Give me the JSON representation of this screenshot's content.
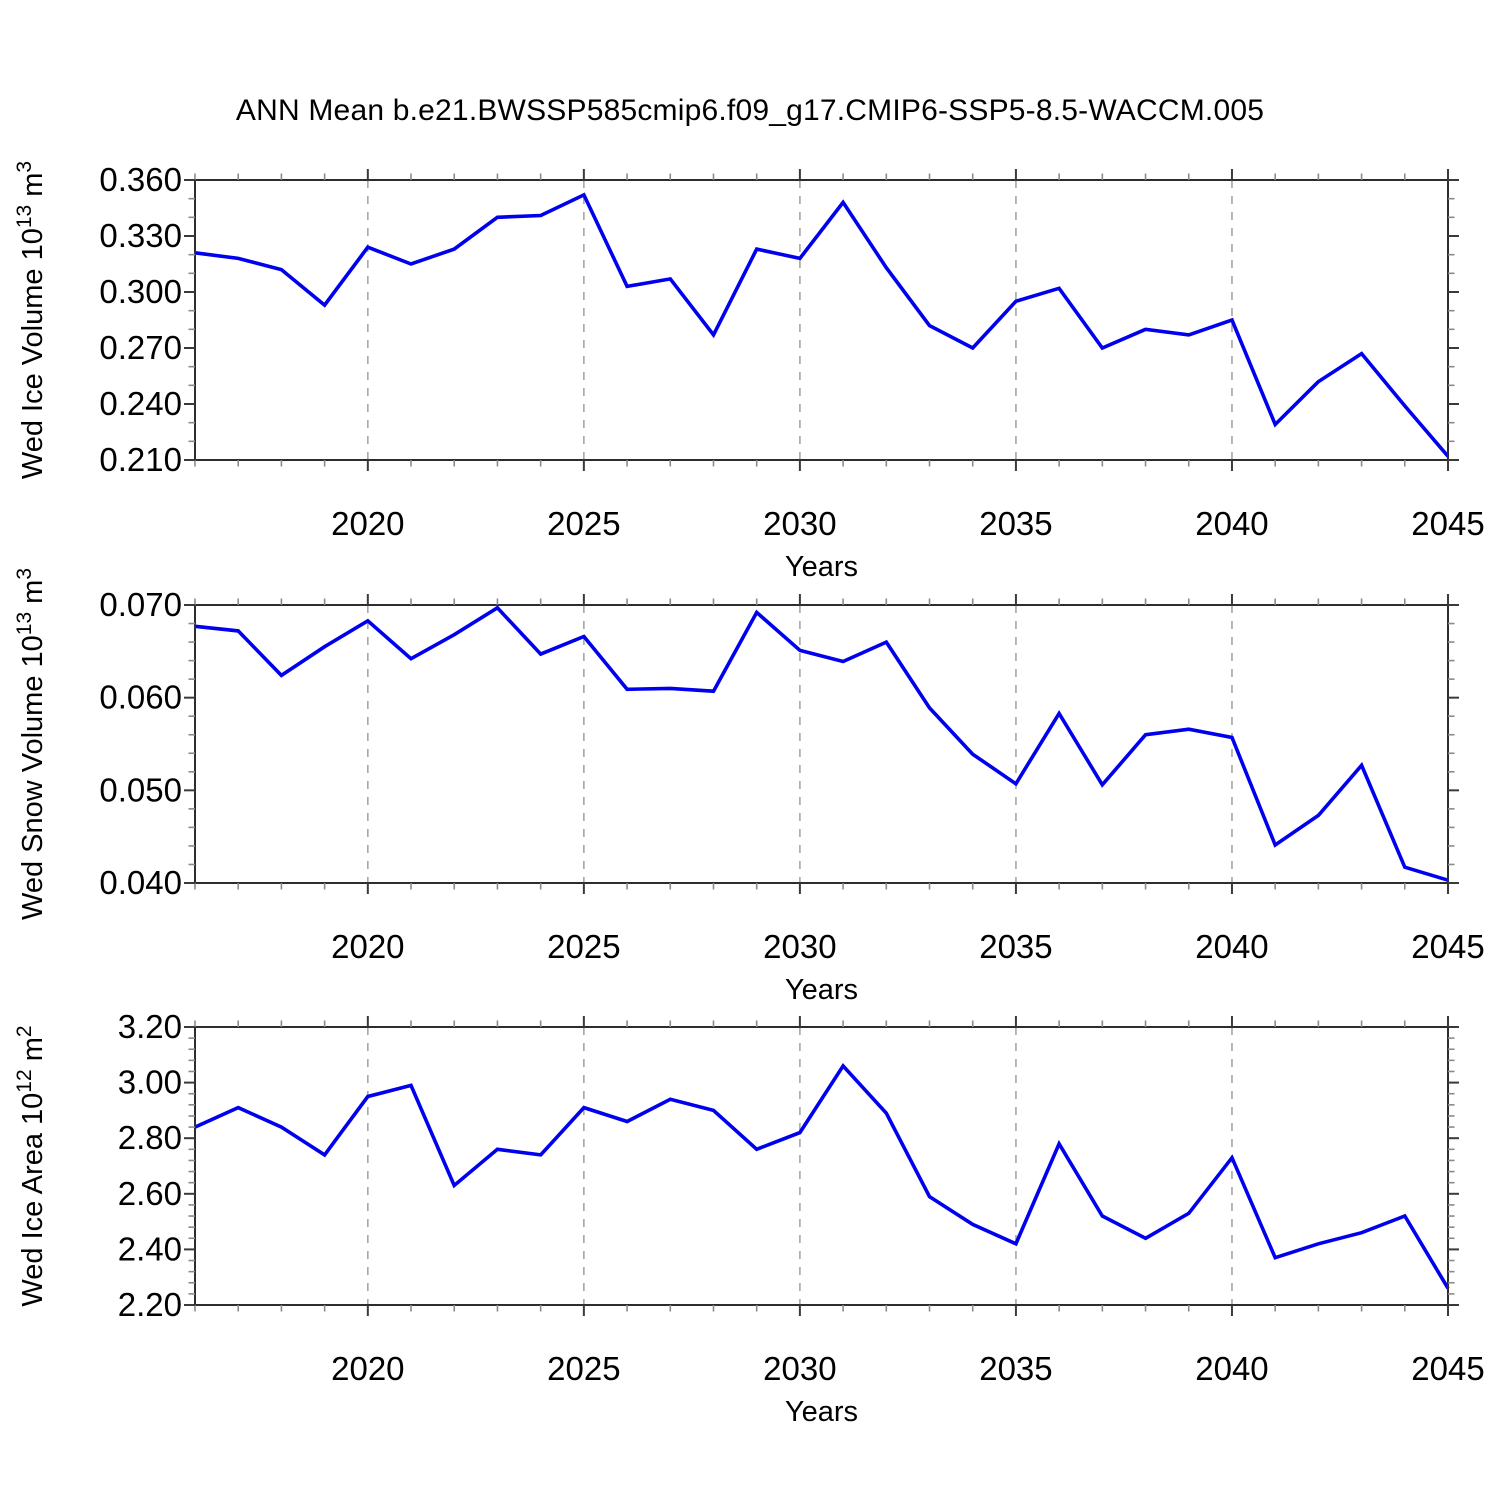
{
  "title": "ANN Mean b.e21.BWSSP585cmip6.f09_g17.CMIP6-SSP5-8.5-WACCM.005",
  "xlabel": "Years",
  "line_color": "#0000ee",
  "years": [
    2016,
    2017,
    2018,
    2019,
    2020,
    2021,
    2022,
    2023,
    2024,
    2025,
    2026,
    2027,
    2028,
    2029,
    2030,
    2031,
    2032,
    2033,
    2034,
    2035,
    2036,
    2037,
    2038,
    2039,
    2040,
    2041,
    2042,
    2043,
    2044,
    2045
  ],
  "x_major_years": [
    2020,
    2025,
    2030,
    2035,
    2040,
    2045
  ],
  "x_tick_labels": [
    "2020",
    "2025",
    "2030",
    "2035",
    "2040",
    "2045"
  ],
  "x_gridline_years": [
    2020,
    2025,
    2030,
    2035,
    2040
  ],
  "chart_data": [
    {
      "id": "wed-ice-volume",
      "type": "line",
      "ylabel_plain": "Wed Ice Volume 10^13 m^3",
      "ylabel_segments": [
        {
          "t": "Wed Ice Volume 10"
        },
        {
          "t": "13",
          "sup": true
        },
        {
          "t": " m"
        },
        {
          "t": "3",
          "sup": true
        }
      ],
      "xlabel": "Years",
      "ylim": [
        0.21,
        0.36
      ],
      "ytick_values": [
        0.36,
        0.33,
        0.3,
        0.27,
        0.24,
        0.21
      ],
      "ytick_labels": [
        "0.360",
        "0.330",
        "0.300",
        "0.270",
        "0.240",
        "0.210"
      ],
      "ytick_minor_step": 0.01,
      "values": [
        0.321,
        0.318,
        0.312,
        0.293,
        0.324,
        0.315,
        0.323,
        0.34,
        0.341,
        0.352,
        0.303,
        0.307,
        0.277,
        0.323,
        0.318,
        0.348,
        0.313,
        0.282,
        0.27,
        0.295,
        0.302,
        0.27,
        0.28,
        0.277,
        0.285,
        0.229,
        0.252,
        0.267,
        0.239,
        0.212
      ]
    },
    {
      "id": "wed-snow-volume",
      "type": "line",
      "ylabel_plain": "Wed Snow Volume 10^13 m^3",
      "ylabel_segments": [
        {
          "t": "Wed Snow Volume 10"
        },
        {
          "t": "13",
          "sup": true
        },
        {
          "t": " m"
        },
        {
          "t": "3",
          "sup": true
        }
      ],
      "xlabel": "Years",
      "ylim": [
        0.04,
        0.07
      ],
      "ytick_values": [
        0.07,
        0.06,
        0.05,
        0.04
      ],
      "ytick_labels": [
        "0.070",
        "0.060",
        "0.050",
        "0.040"
      ],
      "ytick_minor_step": 0.002,
      "values": [
        0.0677,
        0.0672,
        0.0624,
        0.0655,
        0.0683,
        0.0642,
        0.0668,
        0.0697,
        0.0647,
        0.0666,
        0.0609,
        0.061,
        0.0607,
        0.0692,
        0.0651,
        0.0639,
        0.066,
        0.0589,
        0.0539,
        0.0507,
        0.0583,
        0.0506,
        0.056,
        0.0566,
        0.0557,
        0.0441,
        0.0473,
        0.0527,
        0.0417,
        0.0403
      ]
    },
    {
      "id": "wed-ice-area",
      "type": "line",
      "ylabel_plain": "Wed Ice Area 10^12 m^2",
      "ylabel_segments": [
        {
          "t": "Wed Ice Area 10"
        },
        {
          "t": "12",
          "sup": true
        },
        {
          "t": " m"
        },
        {
          "t": "2",
          "sup": true
        }
      ],
      "xlabel": "Years",
      "ylim": [
        2.2,
        3.2
      ],
      "ytick_values": [
        3.2,
        3.0,
        2.8,
        2.6,
        2.4,
        2.2
      ],
      "ytick_labels": [
        "3.20",
        "3.00",
        "2.80",
        "2.60",
        "2.40",
        "2.20"
      ],
      "ytick_minor_step": 0.04,
      "values": [
        2.84,
        2.91,
        2.84,
        2.74,
        2.95,
        2.99,
        2.63,
        2.76,
        2.74,
        2.91,
        2.86,
        2.94,
        2.9,
        2.76,
        2.82,
        3.06,
        2.89,
        2.59,
        2.49,
        2.42,
        2.78,
        2.52,
        2.44,
        2.53,
        2.73,
        2.37,
        2.42,
        2.46,
        2.52,
        2.26
      ]
    }
  ]
}
